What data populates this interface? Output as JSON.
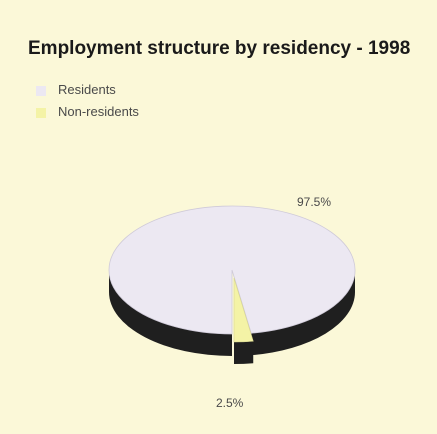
{
  "chart_data": {
    "type": "pie",
    "title": "Employment structure by residency - 1998",
    "legend_position": "top-left",
    "labels": [
      "Residents",
      "Non-residents"
    ],
    "values": [
      97.5,
      2.5
    ],
    "data_labels": [
      "97.5%",
      "2.5%"
    ],
    "colors": [
      "#ece8f2",
      "#f4f3a6"
    ],
    "side_color": "#1f1f1f",
    "exploded_slice": "Non-residents"
  }
}
